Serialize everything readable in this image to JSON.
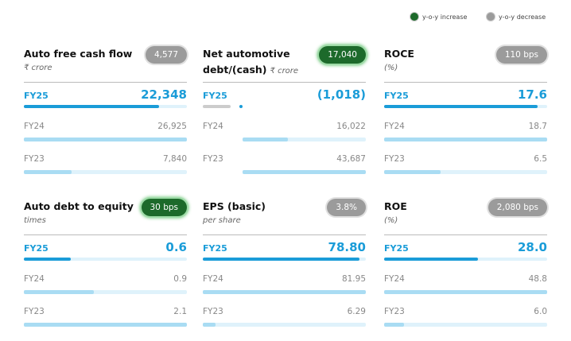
{
  "legend": [
    {
      "label": "y-o-y increase",
      "trend": "increase"
    },
    {
      "label": "y-o-y decrease",
      "trend": "decrease"
    }
  ],
  "colors": {
    "increase": "#1d6a2b",
    "decrease": "#9b9b9b",
    "current_bar": "#1a9cd8",
    "past_bar": "#a9dcf3",
    "track": "#dff2fb"
  },
  "cards": [
    {
      "title": "Auto free cash flow",
      "unit": "₹ crore",
      "badge": {
        "label": "4,577",
        "trend": "decrease"
      },
      "rows": [
        {
          "label": "FY25",
          "value": 22348,
          "value_label": "22,348"
        },
        {
          "label": "FY24",
          "value": 26925,
          "value_label": "26,925"
        },
        {
          "label": "FY23",
          "value": 7840,
          "value_label": "7,840"
        }
      ]
    },
    {
      "title": "Net automotive debt/(cash)",
      "unit": "₹ crore",
      "badge": {
        "label": "17,040",
        "trend": "increase"
      },
      "rows": [
        {
          "label": "FY25",
          "value": -1018,
          "value_label": "(1,018)"
        },
        {
          "label": "FY24",
          "value": 16022,
          "value_label": "16,022"
        },
        {
          "label": "FY23",
          "value": 43687,
          "value_label": "43,687"
        }
      ]
    },
    {
      "title": "ROCE",
      "unit": "(%)",
      "badge": {
        "label": "110 bps",
        "trend": "decrease"
      },
      "rows": [
        {
          "label": "FY25",
          "value": 17.6,
          "value_label": "17.6"
        },
        {
          "label": "FY24",
          "value": 18.7,
          "value_label": "18.7"
        },
        {
          "label": "FY23",
          "value": 6.5,
          "value_label": "6.5"
        }
      ]
    },
    {
      "title": "Auto debt to equity",
      "unit": "times",
      "badge": {
        "label": "30 bps",
        "trend": "increase"
      },
      "rows": [
        {
          "label": "FY25",
          "value": 0.6,
          "value_label": "0.6"
        },
        {
          "label": "FY24",
          "value": 0.9,
          "value_label": "0.9"
        },
        {
          "label": "FY23",
          "value": 2.1,
          "value_label": "2.1"
        }
      ]
    },
    {
      "title": "EPS (basic)",
      "unit": "per share",
      "badge": {
        "label": "3.8%",
        "trend": "decrease"
      },
      "rows": [
        {
          "label": "FY25",
          "value": 78.8,
          "value_label": "78.80"
        },
        {
          "label": "FY24",
          "value": 81.95,
          "value_label": "81.95"
        },
        {
          "label": "FY23",
          "value": 6.29,
          "value_label": "6.29"
        }
      ]
    },
    {
      "title": "ROE",
      "unit": "(%)",
      "badge": {
        "label": "2,080 bps",
        "trend": "decrease"
      },
      "rows": [
        {
          "label": "FY25",
          "value": 28.0,
          "value_label": "28.0"
        },
        {
          "label": "FY24",
          "value": 48.8,
          "value_label": "48.8"
        },
        {
          "label": "FY23",
          "value": 6.0,
          "value_label": "6.0"
        }
      ]
    }
  ]
}
